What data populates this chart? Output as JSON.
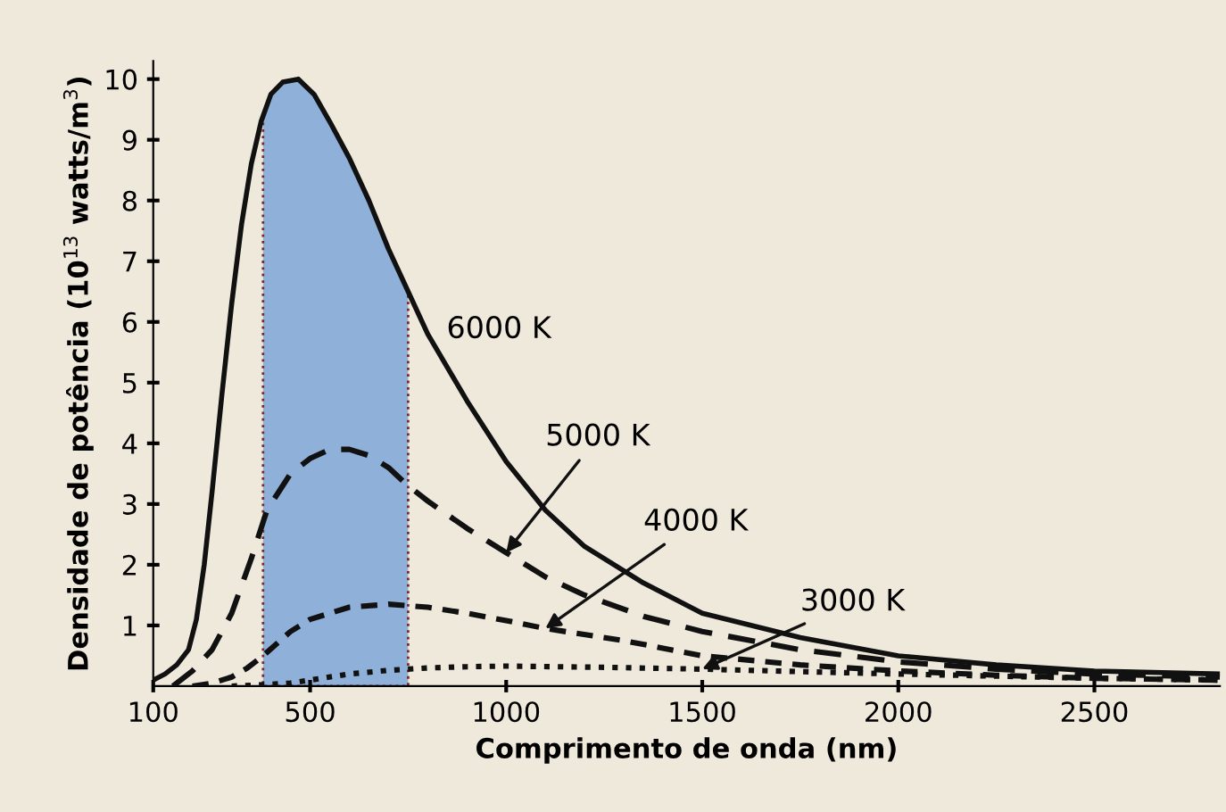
{
  "chart_data": {
    "type": "line",
    "xlabel": "Comprimento de onda (nm)",
    "ylabel": "Densidade de potência (10$^{13}$ watts/m$^{3}$)",
    "xlim": [
      100,
      2820
    ],
    "ylim": [
      0,
      10.3
    ],
    "xticks": [
      100,
      500,
      1000,
      1500,
      2000,
      2500
    ],
    "yticks": [
      1,
      2,
      3,
      4,
      5,
      6,
      7,
      8,
      9,
      10
    ],
    "grid": false,
    "legend": false,
    "bands": [
      {
        "axis": "x",
        "from": 380,
        "to": 750,
        "label": null,
        "color": "#8fb0d8"
      }
    ],
    "series": [
      {
        "color": "#111111",
        "line_style": "solid",
        "x": [
          100,
          130,
          160,
          190,
          210,
          230,
          250,
          275,
          300,
          325,
          350,
          375,
          400,
          430,
          470,
          510,
          550,
          600,
          650,
          700,
          750,
          800,
          900,
          1000,
          1100,
          1200,
          1350,
          1500,
          1750,
          2000,
          2250,
          2500,
          2820
        ],
        "values": [
          0.1,
          0.2,
          0.35,
          0.6,
          1.1,
          2.0,
          3.2,
          4.8,
          6.3,
          7.6,
          8.6,
          9.3,
          9.75,
          9.95,
          10.0,
          9.75,
          9.3,
          8.7,
          8.0,
          7.2,
          6.5,
          5.8,
          4.7,
          3.7,
          2.9,
          2.3,
          1.7,
          1.2,
          0.8,
          0.5,
          0.35,
          0.25,
          0.2
        ]
      },
      {
        "color": "#111111",
        "line_style": "dashed",
        "x": [
          150,
          200,
          250,
          300,
          350,
          390,
          450,
          500,
          550,
          600,
          650,
          700,
          750,
          800,
          900,
          1000,
          1100,
          1200,
          1350,
          1500,
          1750,
          2000,
          2250,
          2500,
          2820
        ],
        "values": [
          0.0,
          0.25,
          0.6,
          1.2,
          2.1,
          2.9,
          3.5,
          3.75,
          3.9,
          3.9,
          3.8,
          3.6,
          3.3,
          3.05,
          2.6,
          2.2,
          1.8,
          1.5,
          1.15,
          0.9,
          0.6,
          0.4,
          0.28,
          0.2,
          0.15
        ]
      },
      {
        "color": "#111111",
        "line_style": "dashed",
        "x": [
          200,
          250,
          300,
          340,
          380,
          450,
          500,
          550,
          600,
          700,
          800,
          900,
          1000,
          1100,
          1300,
          1500,
          1750,
          2000,
          2250,
          2500,
          2820
        ],
        "values": [
          0.0,
          0.05,
          0.15,
          0.3,
          0.5,
          0.9,
          1.1,
          1.2,
          1.3,
          1.35,
          1.3,
          1.2,
          1.08,
          0.95,
          0.75,
          0.5,
          0.35,
          0.25,
          0.18,
          0.13,
          0.1
        ]
      },
      {
        "color": "#111111",
        "line_style": "dotted",
        "x": [
          300,
          400,
          450,
          500,
          600,
          700,
          800,
          900,
          1000,
          1250,
          1500,
          1750,
          2000,
          2500,
          2820
        ],
        "values": [
          0.0,
          0.03,
          0.05,
          0.1,
          0.2,
          0.26,
          0.3,
          0.32,
          0.33,
          0.31,
          0.28,
          0.24,
          0.2,
          0.13,
          0.1
        ]
      }
    ],
    "annotations": [
      "6000 K",
      {
        "text": "5000 K",
        "x": 1000,
        "y": 2.2
      },
      {
        "text": "4000 K",
        "x": 1100,
        "y": 0.95
      },
      {
        "text": "3000 K",
        "x": 1500,
        "y": 0.28
      }
    ]
  }
}
